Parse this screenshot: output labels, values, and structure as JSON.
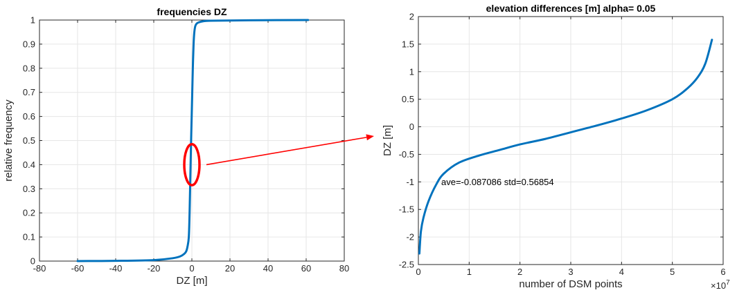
{
  "chart_data": [
    {
      "type": "line",
      "title": "frequencies DZ",
      "xlabel": "DZ [m]",
      "ylabel": "relative frequency",
      "xlim": [
        -80,
        80
      ],
      "ylim": [
        0,
        1
      ],
      "xticks": [
        -80,
        -60,
        -40,
        -20,
        0,
        20,
        40,
        60,
        80
      ],
      "xtick_labels": [
        "-80",
        "-60",
        "-40",
        "-20",
        "0",
        "20",
        "40",
        "60",
        "80"
      ],
      "yticks": [
        0,
        0.1,
        0.2,
        0.3,
        0.4,
        0.5,
        0.6,
        0.7,
        0.8,
        0.9,
        1
      ],
      "ytick_labels": [
        "0",
        "0.1",
        "0.2",
        "0.3",
        "0.4",
        "0.5",
        "0.6",
        "0.7",
        "0.8",
        "0.9",
        "1"
      ],
      "grid": true,
      "series": [
        {
          "color": "#0072bd",
          "x": [
            -60,
            -40,
            -20,
            -10,
            -6,
            -4,
            -3,
            -2.3,
            -1.6,
            -1.2,
            -0.8,
            -0.4,
            -0.1,
            0.2,
            0.5,
            0.9,
            1.3,
            1.8,
            2.5,
            3.5,
            6,
            10,
            30,
            61
          ],
          "y": [
            0,
            0.001,
            0.004,
            0.012,
            0.02,
            0.03,
            0.04,
            0.06,
            0.1,
            0.2,
            0.35,
            0.5,
            0.6,
            0.7,
            0.8,
            0.9,
            0.95,
            0.975,
            0.985,
            0.99,
            0.995,
            0.997,
            0.999,
            1
          ]
        }
      ],
      "annotations": [
        {
          "type": "ellipse",
          "color": "#ff0000",
          "cx": 0,
          "cy": 0.4,
          "rx": 4,
          "ry": 0.085
        }
      ]
    },
    {
      "type": "line",
      "title": "elevation differences [m] alpha= 0.05",
      "xlabel": "number of DSM points",
      "ylabel": "DZ [m]",
      "xlim": [
        0,
        6
      ],
      "ylim": [
        -2.5,
        2
      ],
      "x_multiplier": "×10",
      "x_multiplier_exp": "7",
      "xticks": [
        0,
        1,
        2,
        3,
        4,
        5,
        6
      ],
      "xtick_labels": [
        "0",
        "1",
        "2",
        "3",
        "4",
        "5",
        "6"
      ],
      "yticks": [
        -2.5,
        -2,
        -1.5,
        -1,
        -0.5,
        0,
        0.5,
        1,
        1.5,
        2
      ],
      "ytick_labels": [
        "-2.5",
        "-2",
        "-1.5",
        "-1",
        "-0.5",
        "0",
        "0.5",
        "1",
        "1.5",
        "2"
      ],
      "grid": true,
      "series": [
        {
          "color": "#0072bd",
          "x": [
            0.02,
            0.05,
            0.1,
            0.2,
            0.35,
            0.5,
            0.8,
            1.2,
            1.6,
            2,
            2.5,
            3,
            3.5,
            4,
            4.5,
            5,
            5.3,
            5.5,
            5.65,
            5.78
          ],
          "y": [
            -2.3,
            -1.9,
            -1.65,
            -1.35,
            -1.05,
            -0.85,
            -0.65,
            -0.52,
            -0.42,
            -0.32,
            -0.22,
            -0.1,
            0.02,
            0.15,
            0.3,
            0.5,
            0.7,
            0.9,
            1.15,
            1.58
          ]
        }
      ],
      "annotations": [
        {
          "type": "text",
          "text": "ave=-0.087086  std=0.56854",
          "x": 0.45,
          "y": -1
        }
      ]
    }
  ]
}
